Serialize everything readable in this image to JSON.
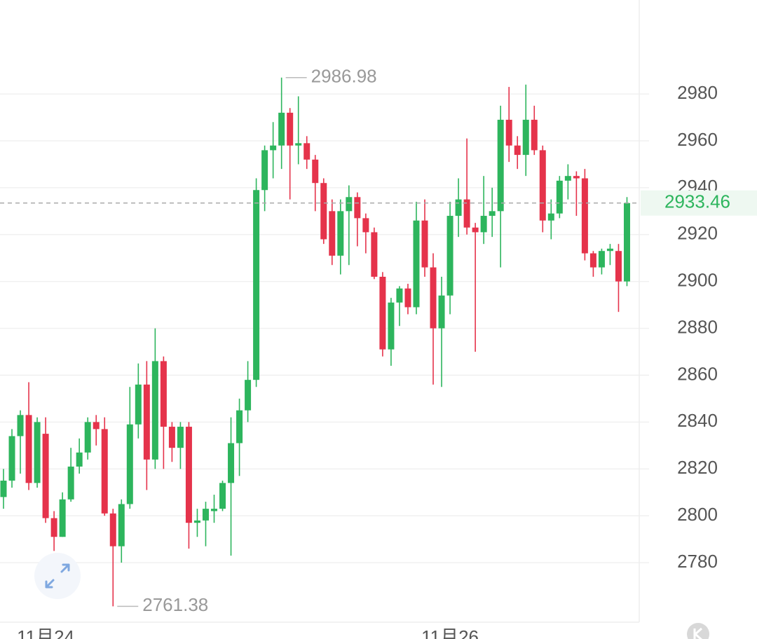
{
  "chart_data": {
    "type": "candlestick",
    "categories": [
      null,
      null,
      null,
      null,
      null,
      "11月24",
      null,
      null,
      null,
      null,
      null,
      null,
      null,
      null,
      null,
      null,
      null,
      null,
      null,
      null,
      null,
      null,
      null,
      null,
      null,
      null,
      null,
      null,
      null,
      null,
      null,
      null,
      null,
      null,
      null,
      null,
      null,
      null,
      null,
      null,
      null,
      null,
      null,
      null,
      null,
      null,
      null,
      null,
      null,
      null,
      null,
      null,
      null,
      "11月26",
      null,
      null,
      null,
      null,
      null,
      null,
      null,
      null,
      null,
      null,
      null,
      null,
      null,
      null,
      null,
      null,
      null,
      null,
      null,
      null,
      null
    ],
    "open": [
      2808,
      2815,
      2834,
      2843,
      2814,
      2835,
      2799,
      2791,
      2807,
      2821,
      2827,
      2840,
      2837,
      2801,
      2787,
      2805,
      2839,
      2856,
      2824,
      2866,
      2838,
      2829,
      2838,
      2797,
      2798,
      2802,
      2803,
      2814,
      2831,
      2845,
      2858,
      2939,
      2956,
      2958,
      2972,
      2958,
      2959,
      2952,
      2942,
      2930,
      2911,
      2930,
      2936,
      2927,
      2921,
      2902,
      2871,
      2891,
      2897,
      2889,
      2926,
      2906,
      2880,
      2894,
      2928,
      2935,
      2923,
      2921,
      2928,
      2930,
      2969,
      2958,
      2954,
      2969,
      2956,
      2926,
      2929,
      2943,
      2945,
      2944,
      2912,
      2906,
      2913,
      2913,
      2900
    ],
    "high": [
      2820,
      2837,
      2845,
      2857,
      2842,
      2842,
      2802,
      2810,
      2829,
      2833,
      2842,
      2843,
      2842,
      2803,
      2807,
      2855,
      2865,
      2866,
      2880,
      2868,
      2840,
      2840,
      2840,
      2803,
      2806,
      2809,
      2815,
      2842,
      2850,
      2866,
      2944,
      2958,
      2968,
      2986.98,
      2974,
      2979,
      2962,
      2954,
      2944,
      2935,
      2935,
      2941,
      2938,
      2929,
      2923,
      2904,
      2893,
      2898,
      2899,
      2934,
      2935,
      2912,
      2902,
      2934,
      2944,
      2961,
      2925,
      2945,
      2940,
      2975,
      2983,
      2962,
      2984,
      2975,
      2958,
      2935,
      2945,
      2950,
      2947,
      2948,
      2913,
      2914,
      2916,
      2916,
      2936
    ],
    "low": [
      2803,
      2812,
      2818,
      2811,
      2812,
      2797,
      2785,
      2791,
      2806,
      2818,
      2824,
      2830,
      2800,
      2761.38,
      2780,
      2803,
      2833,
      2811,
      2820,
      2820,
      2823,
      2820,
      2786,
      2791,
      2787,
      2797,
      2802,
      2783,
      2817,
      2840,
      2855,
      2930,
      2944,
      2948,
      2935,
      2950,
      2948,
      2930,
      2916,
      2907,
      2903,
      2907,
      2915,
      2912,
      2901,
      2868,
      2864,
      2881,
      2886,
      2886,
      2902,
      2856,
      2855,
      2886,
      2919,
      2920,
      2870,
      2916,
      2919,
      2906,
      2951,
      2948,
      2945,
      2954,
      2921,
      2918,
      2927,
      2935,
      2928,
      2909,
      2902,
      2903,
      2907,
      2887,
      2898
    ],
    "close": [
      2815,
      2834,
      2843,
      2814,
      2840,
      2799,
      2791,
      2807,
      2821,
      2827,
      2840,
      2837,
      2801,
      2787,
      2805,
      2839,
      2856,
      2824,
      2866,
      2838,
      2829,
      2838,
      2797,
      2798,
      2803,
      2803,
      2814,
      2831,
      2845,
      2858,
      2939,
      2956,
      2958,
      2972,
      2958,
      2959,
      2952,
      2942,
      2918,
      2911,
      2930,
      2936,
      2927,
      2921,
      2902,
      2871,
      2891,
      2897,
      2889,
      2926,
      2906,
      2880,
      2894,
      2928,
      2935,
      2923,
      2921,
      2928,
      2930,
      2969,
      2958,
      2954,
      2969,
      2956,
      2926,
      2929,
      2943,
      2945,
      2944,
      2912,
      2906,
      2913,
      2914,
      2900,
      2933.46
    ],
    "up_color": "#2db55d",
    "down_color": "#e5334b",
    "ylim": [
      2754.6,
      3020.1
    ],
    "yticks": [
      2780,
      2800,
      2820,
      2840,
      2860,
      2880,
      2900,
      2920,
      2940,
      2960,
      2980
    ],
    "grid": true
  }
}
